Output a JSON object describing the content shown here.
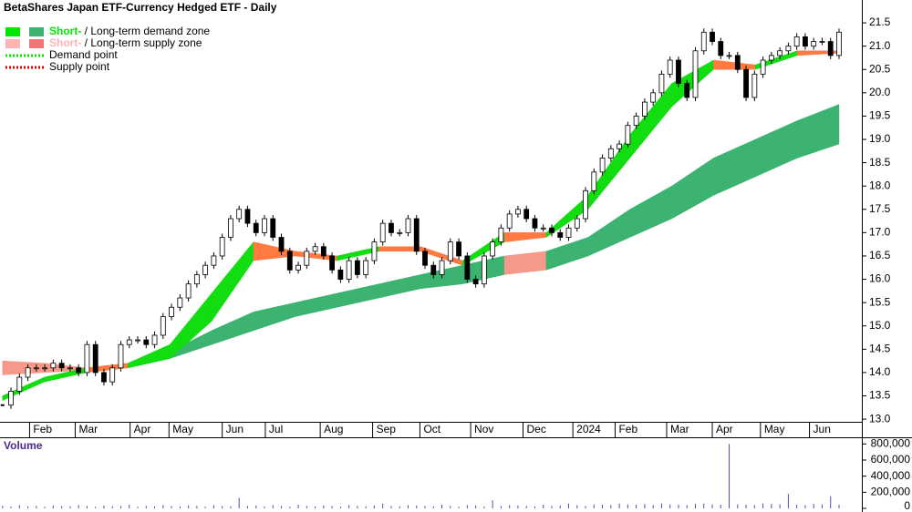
{
  "chart_data": {
    "type": "candlestick",
    "title": "BetaShares Japan ETF-Currency Hedged ETF - Daily",
    "legend": [
      {
        "short": "Short-",
        "sep": " / ",
        "long": "Long-term demand zone",
        "short_color": "#00e600",
        "long_color": "#3cb371"
      },
      {
        "short": "Short-",
        "sep": " / ",
        "long": "Long-term supply zone",
        "short_color": "#ffb3b3",
        "long_color": "#f07575"
      },
      {
        "label": "Demand point",
        "color": "#00e600"
      },
      {
        "label": "Supply point",
        "color": "#e00000"
      }
    ],
    "close": {
      "values": [
        13.3,
        13.6,
        13.9,
        14.1,
        14.1,
        14.1,
        14.2,
        14.1,
        14.1,
        14.0,
        14.6,
        14.0,
        13.8,
        14.1,
        14.6,
        14.7,
        14.7,
        14.6,
        14.8,
        15.2,
        15.4,
        15.6,
        15.9,
        16.1,
        16.3,
        16.5,
        16.9,
        17.3,
        17.5,
        17.2,
        17.0,
        17.3,
        16.9,
        16.6,
        16.2,
        16.3,
        16.6,
        16.7,
        16.5,
        16.2,
        16.0,
        16.4,
        16.1,
        16.4,
        16.8,
        17.2,
        17.0,
        17.0,
        17.3,
        16.6,
        16.3,
        16.1,
        16.4,
        16.8,
        16.5,
        16.0,
        15.9,
        16.5,
        16.8,
        17.1,
        17.4,
        17.5,
        17.3,
        17.1,
        17.1,
        17.0,
        16.9,
        17.1,
        17.3,
        17.9,
        18.3,
        18.6,
        18.8,
        18.9,
        19.3,
        19.5,
        19.8,
        20.0,
        20.4,
        20.7,
        20.2,
        19.9,
        20.9,
        21.3,
        21.1,
        20.8,
        20.8,
        20.5,
        19.9,
        20.4,
        20.7,
        20.8,
        20.9,
        21.0,
        21.2,
        21.0,
        21.1,
        21.1,
        20.8,
        21.3
      ]
    },
    "short_zone": {
      "upper": [
        13.5,
        13.9,
        14.1,
        14.2,
        14.6,
        15.7,
        16.8,
        16.6,
        16.5,
        16.7,
        16.7,
        16.4,
        17.0,
        17.0,
        17.8,
        19.1,
        20.2,
        20.7,
        20.6,
        20.9,
        20.9
      ],
      "lower": [
        13.4,
        13.8,
        14.0,
        14.1,
        14.3,
        15.1,
        16.4,
        16.5,
        16.4,
        16.6,
        16.6,
        16.3,
        16.8,
        16.9,
        17.5,
        18.6,
        19.7,
        20.5,
        20.5,
        20.8,
        20.85
      ],
      "demand_color": "#11dd11",
      "supply_color": "#ff7a40"
    },
    "long_zone": {
      "upper": [
        14.25,
        14.2,
        14.1,
        14.2,
        14.45,
        14.9,
        15.3,
        15.5,
        15.7,
        15.9,
        16.1,
        16.3,
        16.5,
        16.6,
        16.9,
        17.5,
        18.0,
        18.6,
        19.0,
        19.4,
        19.75
      ],
      "lower": [
        13.95,
        14.0,
        14.05,
        14.1,
        14.3,
        14.6,
        14.9,
        15.2,
        15.4,
        15.6,
        15.8,
        15.9,
        16.1,
        16.2,
        16.5,
        16.9,
        17.3,
        17.8,
        18.2,
        18.6,
        18.9
      ],
      "demand_color": "#3cb371",
      "supply_color": "#f59a8a"
    },
    "xlim": [
      -0.3,
      101.7
    ],
    "xticks": [
      {
        "value": 3.2,
        "label": "Feb"
      },
      {
        "value": 8.6,
        "label": "Mar"
      },
      {
        "value": 15.1,
        "label": "Apr"
      },
      {
        "value": 19.7,
        "label": "May"
      },
      {
        "value": 26.0,
        "label": "Jun"
      },
      {
        "value": 31.1,
        "label": "Jul"
      },
      {
        "value": 37.6,
        "label": "Aug"
      },
      {
        "value": 43.8,
        "label": "Sep"
      },
      {
        "value": 49.4,
        "label": "Oct"
      },
      {
        "value": 55.4,
        "label": "Nov"
      },
      {
        "value": 61.6,
        "label": "Dec"
      },
      {
        "value": 67.5,
        "label": "2024"
      },
      {
        "value": 72.5,
        "label": "Feb"
      },
      {
        "value": 78.6,
        "label": "Mar"
      },
      {
        "value": 84.0,
        "label": "Apr"
      },
      {
        "value": 89.7,
        "label": "May"
      },
      {
        "value": 95.5,
        "label": "Jun"
      }
    ],
    "ylim": [
      12.65,
      21.99
    ],
    "yticks": [
      {
        "value": 13,
        "label": "13.0"
      },
      13.5,
      {
        "value": 14,
        "label": "14.0"
      },
      14.5,
      {
        "value": 15,
        "label": "15.0"
      },
      15.5,
      {
        "value": 16,
        "label": "16.0"
      },
      16.5,
      {
        "value": 17,
        "label": "17.0"
      },
      17.5,
      {
        "value": 18,
        "label": "18.0"
      },
      18.5,
      {
        "value": 19,
        "label": "19.0"
      },
      19.5,
      {
        "value": 20,
        "label": "20.0"
      },
      20.5,
      {
        "value": 21,
        "label": "21.0"
      },
      21.5
    ],
    "volume": {
      "label": "Volume",
      "color": "#6a3fb0",
      "values": [
        30000,
        20000,
        40000,
        25000,
        30000,
        20000,
        35000,
        30000,
        25000,
        40000,
        30000,
        20000,
        35000,
        25000,
        30000,
        45000,
        20000,
        30000,
        25000,
        40000,
        30000,
        25000,
        35000,
        30000,
        20000,
        40000,
        30000,
        25000,
        130000,
        30000,
        35000,
        25000,
        40000,
        30000,
        20000,
        45000,
        30000,
        25000,
        35000,
        30000,
        20000,
        40000,
        30000,
        25000,
        35000,
        60000,
        30000,
        25000,
        40000,
        35000,
        30000,
        25000,
        45000,
        30000,
        20000,
        40000,
        35000,
        25000,
        100000,
        30000,
        40000,
        35000,
        30000,
        25000,
        45000,
        30000,
        35000,
        60000,
        40000,
        30000,
        50000,
        45000,
        40000,
        60000,
        50000,
        45000,
        55000,
        40000,
        60000,
        50000,
        45000,
        40000,
        55000,
        60000,
        50000,
        45000,
        800000,
        50000,
        45000,
        40000,
        60000,
        55000,
        50000,
        180000,
        45000,
        40000,
        55000,
        50000,
        150000,
        45000
      ]
    },
    "vlim": [
      0,
      860000
    ],
    "vticks": [
      0,
      {
        "value": 200000,
        "label": "200,000"
      },
      {
        "value": 400000,
        "label": "400,000"
      },
      {
        "value": 600000,
        "label": "600,000"
      },
      {
        "value": 800000,
        "label": "800,000"
      }
    ]
  }
}
